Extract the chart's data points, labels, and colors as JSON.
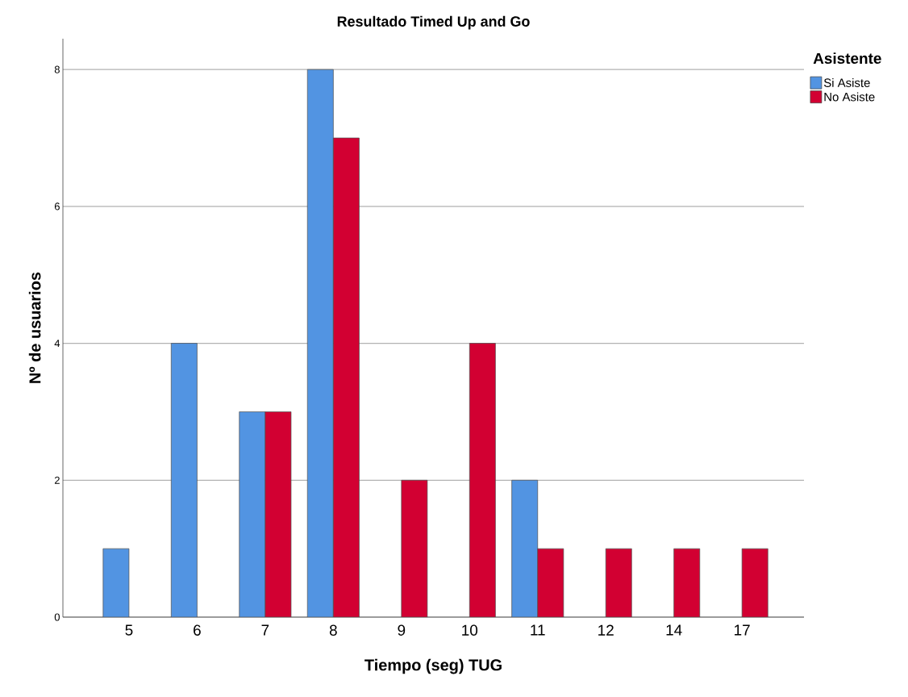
{
  "chart_data": {
    "type": "bar",
    "title": "Resultado Timed Up and Go",
    "xlabel": "Tiempo (seg) TUG",
    "ylabel": "Nº de usuarios",
    "legend_title": "Asistente",
    "categories": [
      "5",
      "6",
      "7",
      "8",
      "9",
      "10",
      "11",
      "12",
      "14",
      "17"
    ],
    "series": [
      {
        "name": "Si Asiste",
        "color": "#5294e2",
        "values": [
          1,
          4,
          3,
          8,
          null,
          null,
          2,
          null,
          null,
          null
        ]
      },
      {
        "name": "No Asiste",
        "color": "#d20032",
        "values": [
          null,
          null,
          3,
          7,
          2,
          4,
          1,
          1,
          1,
          1
        ]
      }
    ],
    "ylim": [
      0,
      8.45
    ],
    "yticks": [
      0,
      2,
      4,
      6,
      8
    ],
    "grid": "y",
    "legend": "top right"
  }
}
